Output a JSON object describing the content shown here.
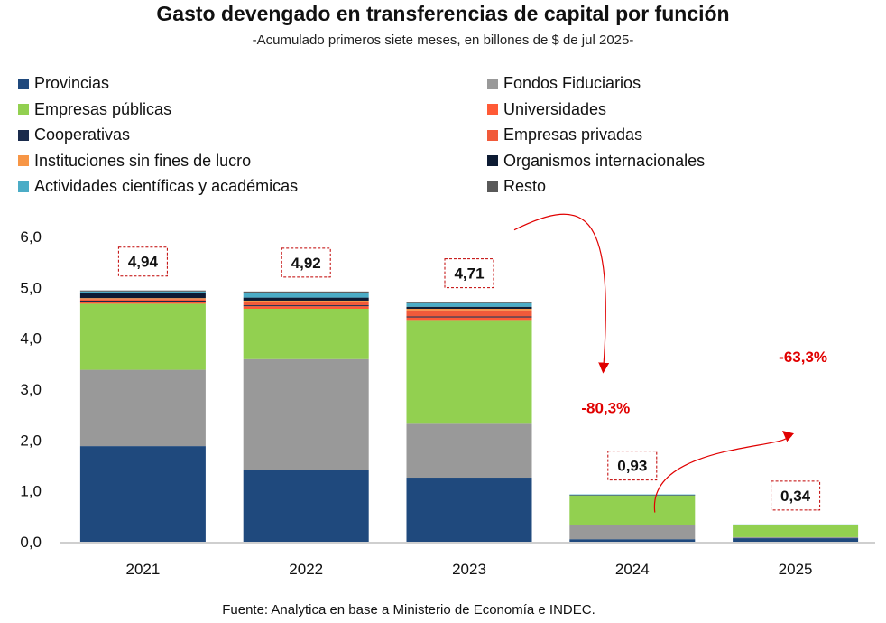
{
  "title": "Gasto devengado en transferencias de capital por función",
  "subtitle": "-Acumulado primeros siete meses, en billones de $ de jul 2025-",
  "source": "Fuente: Analytica en base a Ministerio de Economía e INDEC.",
  "legend": [
    {
      "label": "Provincias",
      "color": "#1f497d"
    },
    {
      "label": "Fondos Fiduciarios",
      "color": "#999999"
    },
    {
      "label": "Empresas públicas",
      "color": "#92d050"
    },
    {
      "label": "Universidades",
      "color": "#ff5a36"
    },
    {
      "label": "Cooperativas",
      "color": "#1a2b4c"
    },
    {
      "label": "Empresas privadas",
      "color": "#f15a3a"
    },
    {
      "label": "Instituciones sin fines de lucro",
      "color": "#f79646"
    },
    {
      "label": "Organismos internacionales",
      "color": "#0d1b33"
    },
    {
      "label": "Actividades científicas y académicas",
      "color": "#4bacc6"
    },
    {
      "label": "Resto",
      "color": "#595959"
    }
  ],
  "chart_data": {
    "type": "bar",
    "stacked": true,
    "categories": [
      "2021",
      "2022",
      "2023",
      "2024",
      "2025"
    ],
    "ylim": [
      0,
      6
    ],
    "yticks": [
      "0,0",
      "1,0",
      "2,0",
      "3,0",
      "4,0",
      "5,0",
      "6,0"
    ],
    "series": [
      {
        "name": "Provincias",
        "color": "#1f497d",
        "values": [
          1.88,
          1.42,
          1.26,
          0.05,
          0.07
        ]
      },
      {
        "name": "Fondos Fiduciarios",
        "color": "#999999",
        "values": [
          1.5,
          2.17,
          1.06,
          0.28,
          0.02
        ]
      },
      {
        "name": "Empresas públicas",
        "color": "#92d050",
        "values": [
          1.3,
          0.99,
          2.04,
          0.58,
          0.24
        ]
      },
      {
        "name": "Universidades",
        "color": "#ff5a36",
        "values": [
          0.04,
          0.05,
          0.05,
          0.0,
          0.0
        ]
      },
      {
        "name": "Cooperativas",
        "color": "#1a2b4c",
        "values": [
          0.02,
          0.02,
          0.02,
          0.0,
          0.0
        ]
      },
      {
        "name": "Empresas privadas",
        "color": "#f15a3a",
        "values": [
          0.03,
          0.06,
          0.12,
          0.0,
          0.0
        ]
      },
      {
        "name": "Instituciones sin fines de lucro",
        "color": "#f79646",
        "values": [
          0.02,
          0.03,
          0.03,
          0.0,
          0.0
        ]
      },
      {
        "name": "Organismos internacionales",
        "color": "#0d1b33",
        "values": [
          0.1,
          0.06,
          0.04,
          0.01,
          0.0
        ]
      },
      {
        "name": "Actividades científicas y académicas",
        "color": "#4bacc6",
        "values": [
          0.03,
          0.1,
          0.07,
          0.01,
          0.01
        ]
      },
      {
        "name": "Resto",
        "color": "#595959",
        "values": [
          0.02,
          0.02,
          0.02,
          0.0,
          0.0
        ]
      }
    ],
    "totals": [
      "4,94",
      "4,92",
      "4,71",
      "0,93",
      "0,34"
    ],
    "annotations": [
      {
        "label": "-80,3%",
        "color": "#e00000",
        "from": "2023",
        "to": "2024"
      },
      {
        "label": "-63,3%",
        "color": "#e00000",
        "from": "2024",
        "to": "2025"
      }
    ]
  }
}
